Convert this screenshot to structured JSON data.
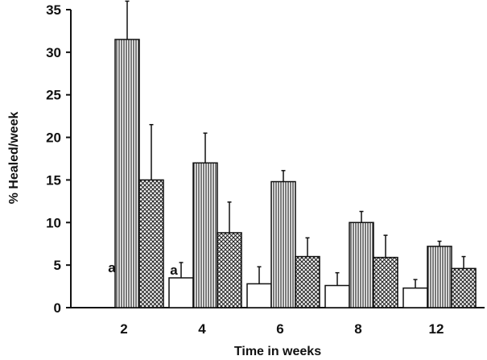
{
  "chart_data": {
    "type": "bar",
    "title": "",
    "xlabel": "Time in weeks",
    "ylabel": "% Healed/week",
    "categories": [
      "2",
      "4",
      "6",
      "8",
      "12"
    ],
    "ylim": [
      0,
      35
    ],
    "yticks": [
      0,
      5,
      10,
      15,
      20,
      25,
      30,
      35
    ],
    "grid": false,
    "legend": "none",
    "series": [
      {
        "values": [
          0,
          3.5,
          2.8,
          2.6,
          2.3
        ],
        "errors": [
          0,
          1.8,
          2.0,
          1.5,
          1.0
        ],
        "fill": "white"
      },
      {
        "values": [
          31.5,
          17,
          14.8,
          10,
          7.2
        ],
        "errors": [
          4.5,
          3.5,
          1.3,
          1.3,
          0.6
        ],
        "fill": "vertical-hatch"
      },
      {
        "values": [
          15,
          8.8,
          6,
          5.9,
          4.6
        ],
        "errors": [
          6.5,
          3.6,
          2.2,
          2.6,
          1.4
        ],
        "fill": "cross-hatch"
      }
    ],
    "annotations": [
      "a",
      "a"
    ],
    "colors": {
      "ink": "#111111",
      "background": "#ffffff"
    }
  }
}
